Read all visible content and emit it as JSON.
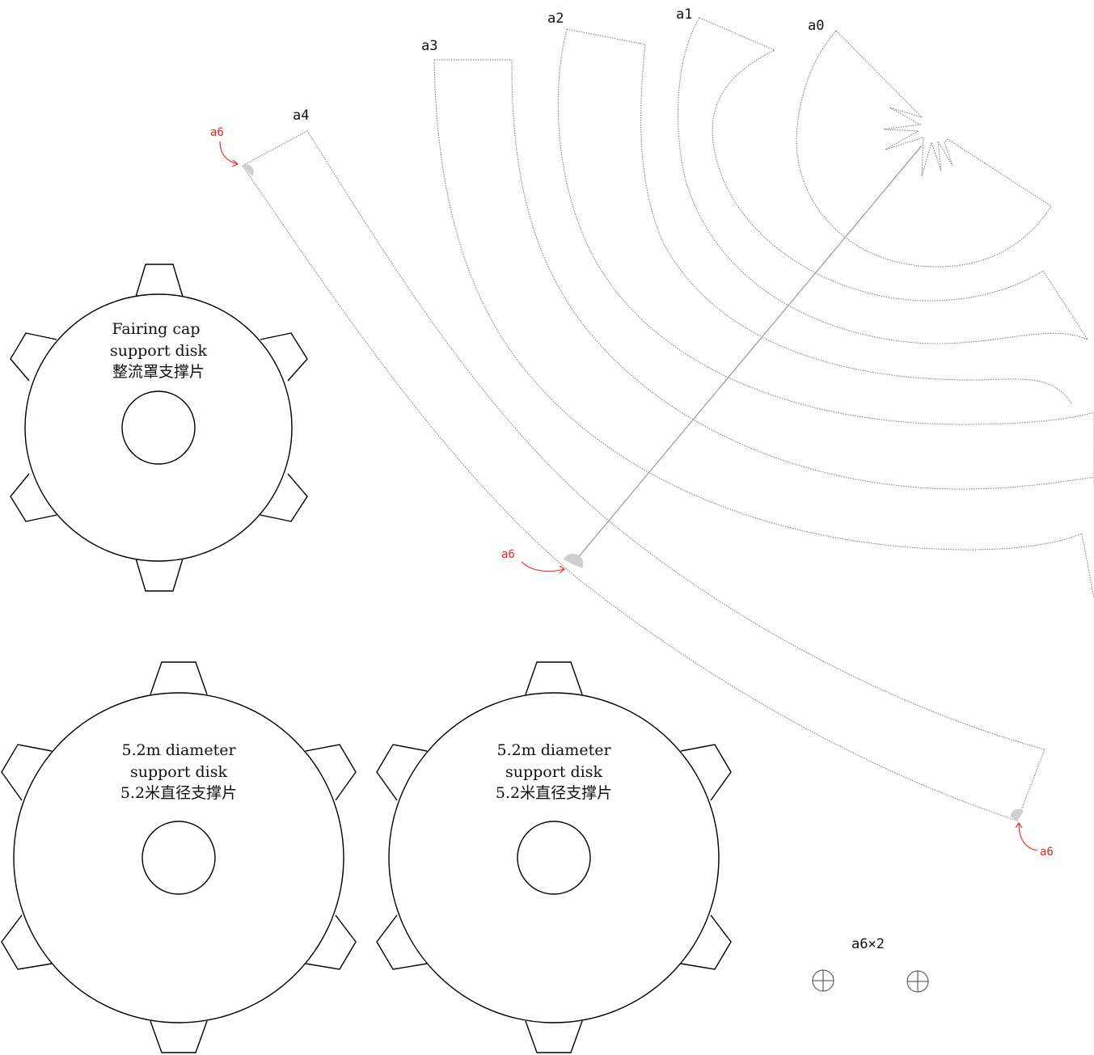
{
  "strips": [
    {
      "id": "a0",
      "label": "a0"
    },
    {
      "id": "a1",
      "label": "a1"
    },
    {
      "id": "a2",
      "label": "a2"
    },
    {
      "id": "a3",
      "label": "a3"
    },
    {
      "id": "a4",
      "label": "a4"
    }
  ],
  "glue_markers": [
    {
      "label": "a6"
    },
    {
      "label": "a6"
    },
    {
      "label": "a6"
    }
  ],
  "disks": [
    {
      "line1": "Fairing cap",
      "line2": "support disk",
      "line3": "整流罩支撑片"
    },
    {
      "line1": "5.2m diameter",
      "line2": "support disk",
      "line3": "5.2米直径支撑片"
    },
    {
      "line1": "5.2m diameter",
      "line2": "support disk",
      "line3": "5.2米直径支撑片"
    }
  ],
  "small_parts": {
    "label": "a6×2"
  },
  "colors": {
    "accent": "#e8231e",
    "glue": "#cfcfcf",
    "outline": "#000000"
  }
}
